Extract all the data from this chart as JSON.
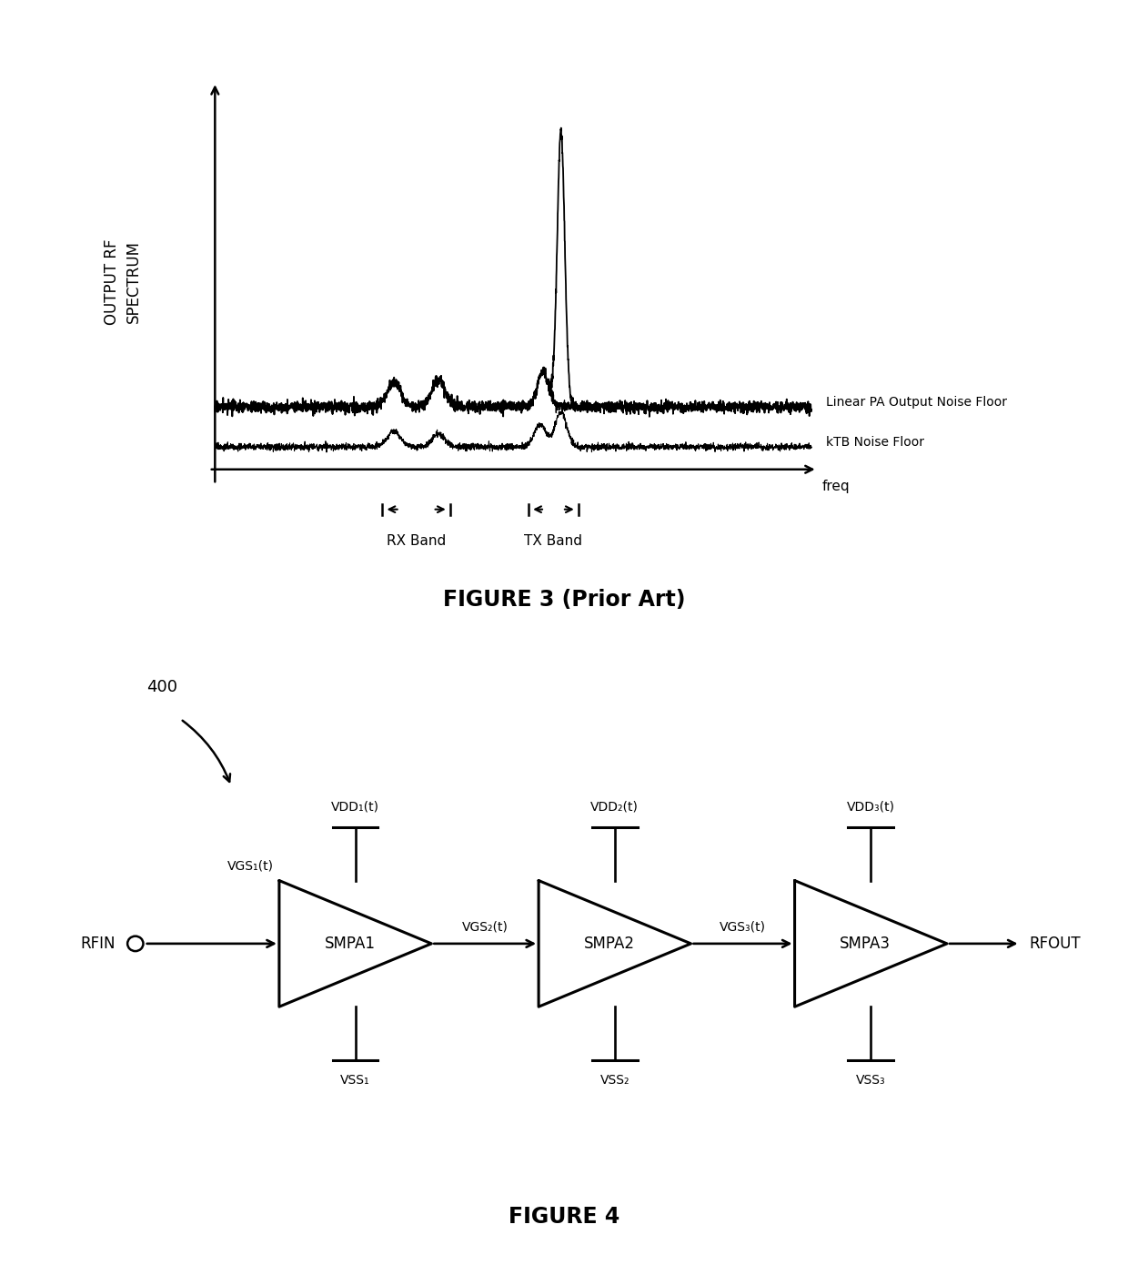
{
  "fig_width": 12.4,
  "fig_height": 13.9,
  "bg_color": "#ffffff",
  "fig3_title": "FIGURE 3 (Prior Art)",
  "fig4_title": "FIGURE 4",
  "fig3_ylabel": "OUTPUT RF\nSPECTRUM",
  "fig3_xlabel": "freq",
  "label_linear_pa": "Linear PA Output Noise Floor",
  "label_ktb": "kTB Noise Floor",
  "label_rx": "RX Band",
  "label_tx": "TX Band",
  "rfin_label": "RFIN",
  "rfout_label": "RFOUT",
  "smpa_labels": [
    "SMPA1",
    "SMPA2",
    "SMPA3"
  ],
  "vdd_labels": [
    "VDD₁(t)",
    "VDD₂(t)",
    "VDD₃(t)"
  ],
  "vss_labels": [
    "VSS₁",
    "VSS₂",
    "VSS₃"
  ],
  "vgs_labels": [
    "VGS₁(t)",
    "VGS₂(t)",
    "VGS₃(t)"
  ],
  "fig400_label": "400",
  "noise_seed": 17
}
